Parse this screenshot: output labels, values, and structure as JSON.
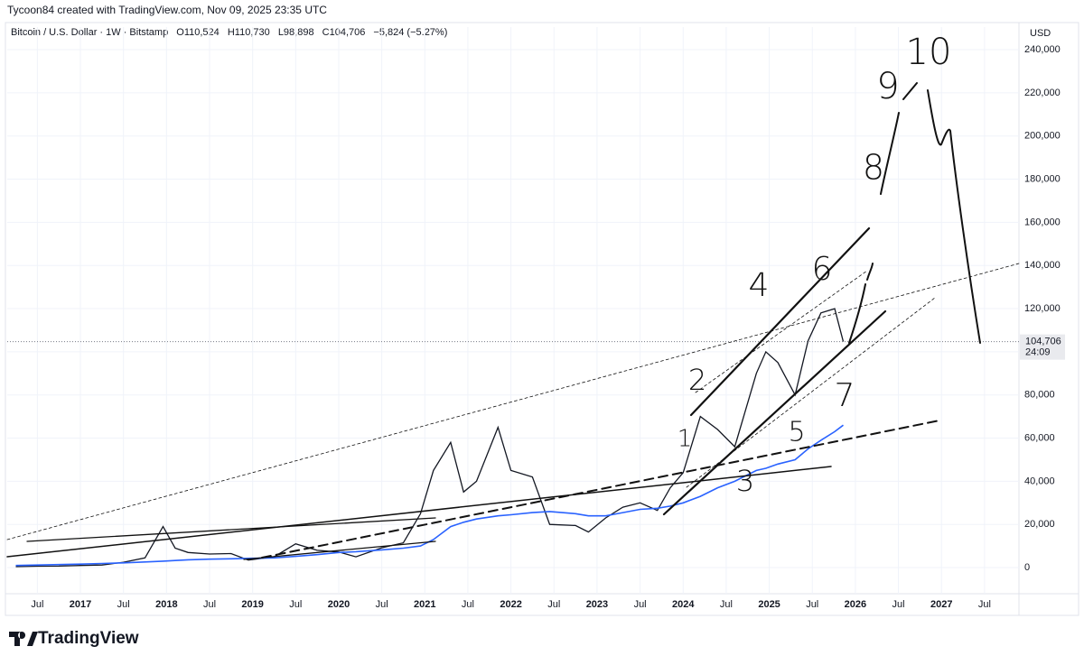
{
  "header": {
    "credit": "Tycoon84 created with TradingView.com, Nov 09, 2025 23:35 UTC"
  },
  "chart_data": {
    "type": "line",
    "legend_text": {
      "symbol": "Bitcoin / U.S. Dollar · 1W · Bitstamp",
      "open": "O110,524",
      "high": "H110,730",
      "low": "L98,898",
      "close": "C104,706",
      "change": "−5,824 (−5.27%)"
    },
    "y_unit": "USD",
    "x": [
      2016.25,
      2016.5,
      2016.75,
      2017.0,
      2017.25,
      2017.5,
      2017.75,
      2017.96,
      2018.1,
      2018.25,
      2018.5,
      2018.75,
      2018.95,
      2019.25,
      2019.5,
      2019.75,
      2020.0,
      2020.2,
      2020.5,
      2020.75,
      2020.95,
      2021.1,
      2021.3,
      2021.45,
      2021.6,
      2021.85,
      2022.0,
      2022.25,
      2022.45,
      2022.75,
      2022.9,
      2023.1,
      2023.3,
      2023.5,
      2023.7,
      2023.85,
      2024.0,
      2024.2,
      2024.4,
      2024.6,
      2024.85,
      2024.96,
      2025.1,
      2025.3,
      2025.45,
      2025.6,
      2025.76,
      2025.86
    ],
    "series": [
      {
        "color": "#131722",
        "values": [
          450,
          650,
          700,
          1000,
          1200,
          2500,
          4500,
          19000,
          9000,
          7000,
          6300,
          6500,
          3500,
          5000,
          11000,
          8000,
          7200,
          5000,
          9200,
          11500,
          25000,
          45000,
          58000,
          35000,
          40000,
          65000,
          45000,
          42000,
          20000,
          19500,
          16500,
          23000,
          28000,
          30000,
          26500,
          37000,
          44000,
          70000,
          64000,
          56000,
          90000,
          100000,
          95000,
          80000,
          105000,
          118000,
          120000,
          104706
        ]
      },
      {
        "color": "#2962ff",
        "values": [
          1000,
          1200,
          1400,
          1600,
          1900,
          2200,
          2600,
          3000,
          3300,
          3600,
          3900,
          4100,
          4300,
          4500,
          5200,
          6000,
          7000,
          7400,
          8200,
          9000,
          10000,
          13000,
          19000,
          21000,
          22500,
          24000,
          24500,
          25500,
          26000,
          25000,
          24000,
          24000,
          25500,
          27000,
          27500,
          28500,
          30000,
          33000,
          37000,
          40000,
          45000,
          46000,
          48000,
          50000,
          55000,
          59000,
          63000,
          66000
        ]
      }
    ],
    "last_value_label": "104,706",
    "countdown": "24:09",
    "annotations": [
      "1",
      "2",
      "3",
      "4",
      "5",
      "6",
      "7",
      "8",
      "9",
      "10"
    ],
    "xlim": [
      2016.15,
      2027.9
    ],
    "xticks": [
      {
        "value": 2016.5,
        "label": "Jul"
      },
      2017,
      {
        "value": 2017.5,
        "label": "Jul"
      },
      2018,
      {
        "value": 2018.5,
        "label": "Jul"
      },
      2019,
      {
        "value": 2019.5,
        "label": "Jul"
      },
      2020,
      {
        "value": 2020.5,
        "label": "Jul"
      },
      2021,
      {
        "value": 2021.5,
        "label": "Jul"
      },
      2022,
      {
        "value": 2022.5,
        "label": "Jul"
      },
      2023,
      {
        "value": 2023.5,
        "label": "Jul"
      },
      2024,
      {
        "value": 2024.5,
        "label": "Jul"
      },
      2025,
      {
        "value": 2025.5,
        "label": "Jul"
      },
      2026,
      {
        "value": 2026.5,
        "label": "Jul"
      },
      2027,
      {
        "value": 2027.5,
        "label": "Jul"
      }
    ],
    "ylim": [
      -21300,
      244200
    ],
    "yticks": [
      0,
      {
        "value": 20000,
        "label": "20,000"
      },
      {
        "value": 40000,
        "label": "40,000"
      },
      {
        "value": 60000,
        "label": "60,000"
      },
      {
        "value": 80000,
        "label": "80,000"
      },
      {
        "value": 100000,
        "label": "100,000"
      },
      {
        "value": 120000,
        "label": "120,000"
      },
      {
        "value": 140000,
        "label": "140,000"
      },
      {
        "value": 160000,
        "label": "160,000"
      },
      {
        "value": 180000,
        "label": "180,000"
      },
      {
        "value": 200000,
        "label": "200,000"
      },
      {
        "value": 220000,
        "label": "220,000"
      },
      {
        "value": 240000,
        "label": "240,000"
      }
    ]
  },
  "footer": {
    "brand": "TradingView"
  }
}
